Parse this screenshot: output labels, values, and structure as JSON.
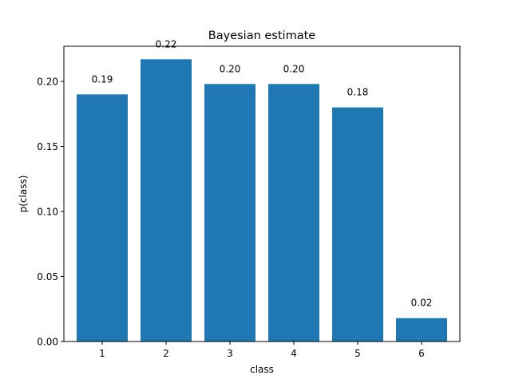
{
  "chart_data": {
    "type": "bar",
    "title": "Bayesian estimate",
    "xlabel": "class",
    "ylabel": "p(class)",
    "categories": [
      "1",
      "2",
      "3",
      "4",
      "5",
      "6"
    ],
    "values": [
      0.19,
      0.217,
      0.198,
      0.198,
      0.18,
      0.018
    ],
    "data_labels": [
      "0.19",
      "0.22",
      "0.20",
      "0.20",
      "0.18",
      "0.02"
    ],
    "ylim": [
      0,
      0.227
    ],
    "yticks": [
      0.0,
      0.05,
      0.1,
      0.15,
      0.2
    ],
    "ytick_labels": [
      "0.00",
      "0.05",
      "0.10",
      "0.15",
      "0.20"
    ],
    "bar_color": "#1f77b4",
    "grid": false
  }
}
